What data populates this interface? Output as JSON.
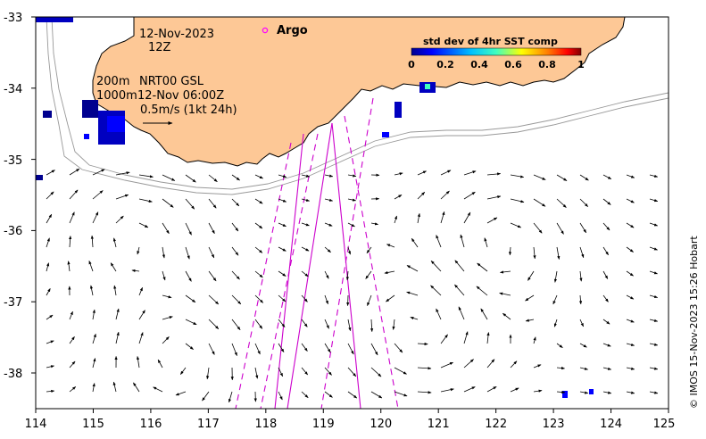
{
  "header": {
    "date": "12-Nov-2023",
    "hour": "12Z",
    "depth_200": "200m",
    "depth_1000": "1000m",
    "source": "NRT00 GSL",
    "source_time": "12-Nov 06:00Z",
    "vector_scale": "0.5m/s (1kt 24h)"
  },
  "legend": {
    "argo_label": "Argo",
    "colorbar_title": "std dev of 4hr SST comp",
    "colorbar_ticks": [
      "0",
      "0.2",
      "0.4",
      "0.6",
      "0.8",
      "1"
    ],
    "colorbar_colors": [
      "#00008f",
      "#0000ff",
      "#00bfff",
      "#40ffbf",
      "#ffff00",
      "#ff8000",
      "#ff0000",
      "#800000"
    ]
  },
  "axes": {
    "x_ticks": [
      "114",
      "115",
      "116",
      "117",
      "118",
      "119",
      "120",
      "121",
      "122",
      "123",
      "124",
      "125"
    ],
    "y_ticks": [
      "-33",
      "-34",
      "-35",
      "-36",
      "-37",
      "-38"
    ],
    "lon_range": [
      114,
      125
    ],
    "lat_range": [
      -38.5,
      -33
    ]
  },
  "credit": "© IMOS 15-Nov-2023 15:26 Hobart",
  "colors": {
    "land": "#fdc896",
    "track": "#cc00cc",
    "isobath": "#999999",
    "argo": "#ff00ff"
  }
}
